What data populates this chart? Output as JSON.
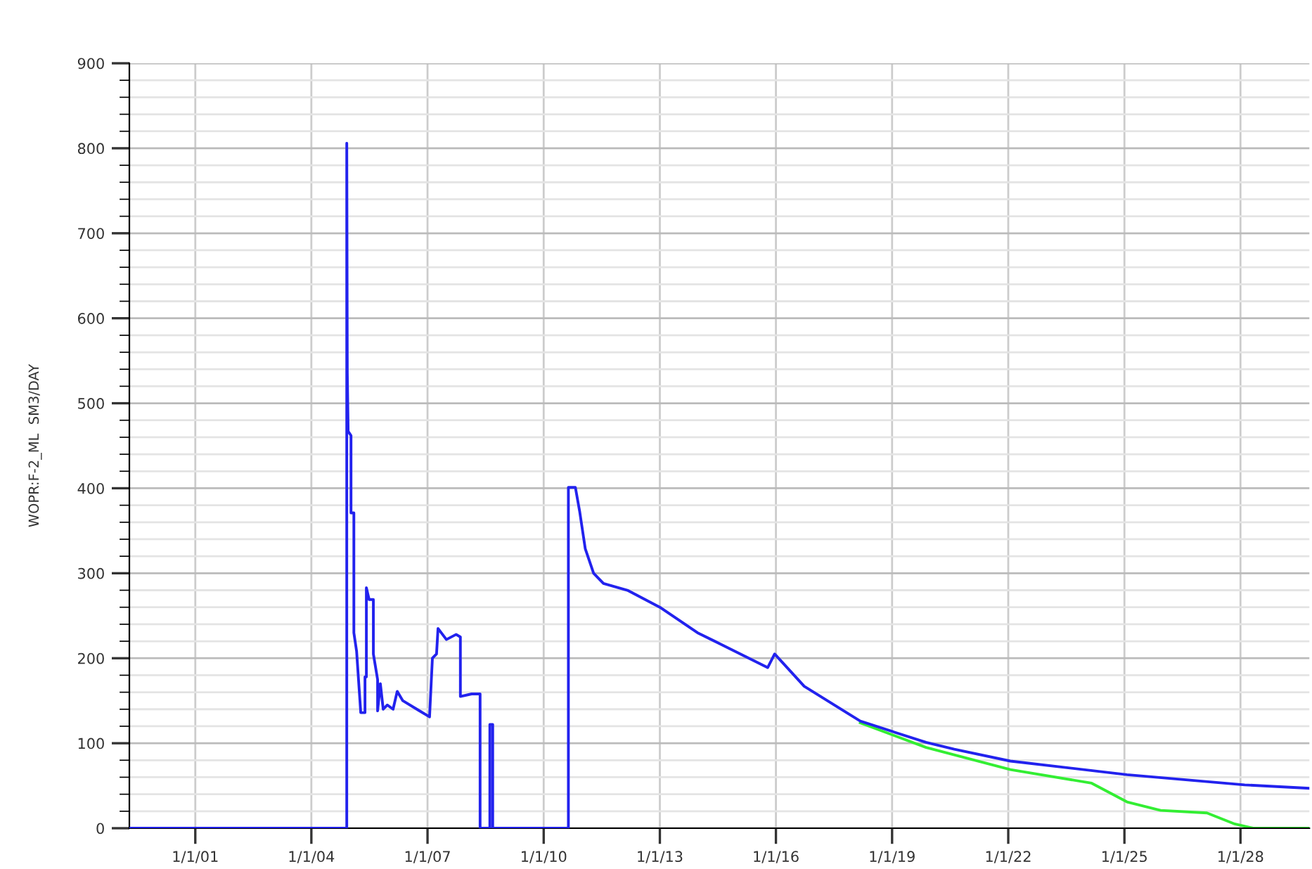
{
  "chart_data": {
    "type": "line",
    "ylabel": "WOPR:F-2_ML  SM3/DAY",
    "series": [
      {
        "color": "#33ee33",
        "x": [
          "2018-03-07",
          "2019-11-18",
          "2022-01-21",
          "2024-02-27",
          "2025-01-25",
          "2025-12-08",
          "2027-02-18",
          "2027-11-08",
          "2028-04-30",
          "2029-10-12"
        ],
        "values": [
          124,
          95,
          69,
          53,
          31,
          21,
          18,
          5,
          0,
          0
        ]
      },
      {
        "color": "#2222ee",
        "x": [
          "1999-04-20",
          "2004-11-30",
          "2004-11-30",
          "2004-12-05",
          "2004-12-13",
          "2005-01-09",
          "2005-01-09",
          "2005-02-05",
          "2005-02-05",
          "2005-03-03",
          "2005-04-11",
          "2005-05-21",
          "2005-05-21",
          "2005-06-03",
          "2005-06-03",
          "2005-06-29",
          "2005-08-08",
          "2005-08-08",
          "2005-09-17",
          "2005-09-17",
          "2005-10-13",
          "2005-11-09",
          "2005-12-18",
          "2006-02-10",
          "2006-03-21",
          "2006-05-13",
          "2006-10-06",
          "2007-01-20",
          "2007-02-16",
          "2007-03-27",
          "2007-04-10",
          "2007-06-28",
          "2007-09-28",
          "2007-11-07",
          "2007-11-07",
          "2008-02-21",
          "2008-05-11",
          "2008-05-11",
          "2008-08-11",
          "2008-08-11",
          "2008-09-07",
          "2008-09-07",
          "2010-08-22",
          "2010-08-22",
          "2010-10-27",
          "2010-12-06",
          "2011-01-28",
          "2011-04-17",
          "2011-07-19",
          "2012-03-01",
          "2013-01-01",
          "2013-12-22",
          "2014-07-22",
          "2015-10-15",
          "2015-12-20",
          "2016-09-24",
          "2018-03-07",
          "2019-11-18",
          "2020-08-10",
          "2022-01-21",
          "2025-01-25",
          "2028-02-10",
          "2029-10-12"
        ],
        "values": [
          0,
          0,
          806,
          536,
          467,
          462,
          371,
          371,
          230,
          208,
          136,
          136,
          178,
          178,
          283,
          269,
          269,
          205,
          175,
          138,
          170,
          140,
          145,
          140,
          161,
          150,
          139,
          131,
          200,
          205,
          235,
          222,
          228,
          225,
          155,
          158,
          158,
          0,
          0,
          122,
          122,
          0,
          0,
          401,
          401,
          373,
          329,
          300,
          288,
          280,
          260,
          230,
          217,
          189,
          205,
          167,
          126,
          101,
          93,
          79,
          63,
          51,
          47
        ]
      }
    ],
    "xlim": [
      "1999-04-20",
      "2029-10-12"
    ],
    "xticks": [
      {
        "value": "2001-01-01",
        "label": "1/1/01"
      },
      {
        "value": "2004-01-01",
        "label": "1/1/04"
      },
      {
        "value": "2007-01-01",
        "label": "1/1/07"
      },
      {
        "value": "2010-01-01",
        "label": "1/1/10"
      },
      {
        "value": "2013-01-01",
        "label": "1/1/13"
      },
      {
        "value": "2016-01-01",
        "label": "1/1/16"
      },
      {
        "value": "2019-01-01",
        "label": "1/1/19"
      },
      {
        "value": "2022-01-01",
        "label": "1/1/22"
      },
      {
        "value": "2025-01-01",
        "label": "1/1/25"
      },
      {
        "value": "2028-01-01",
        "label": "1/1/28"
      }
    ],
    "ylim": [
      0,
      900
    ],
    "yticks": [
      0,
      100,
      200,
      300,
      400,
      500,
      600,
      700,
      800,
      900
    ],
    "grid": true,
    "marker": "none",
    "line_style": "solid"
  }
}
